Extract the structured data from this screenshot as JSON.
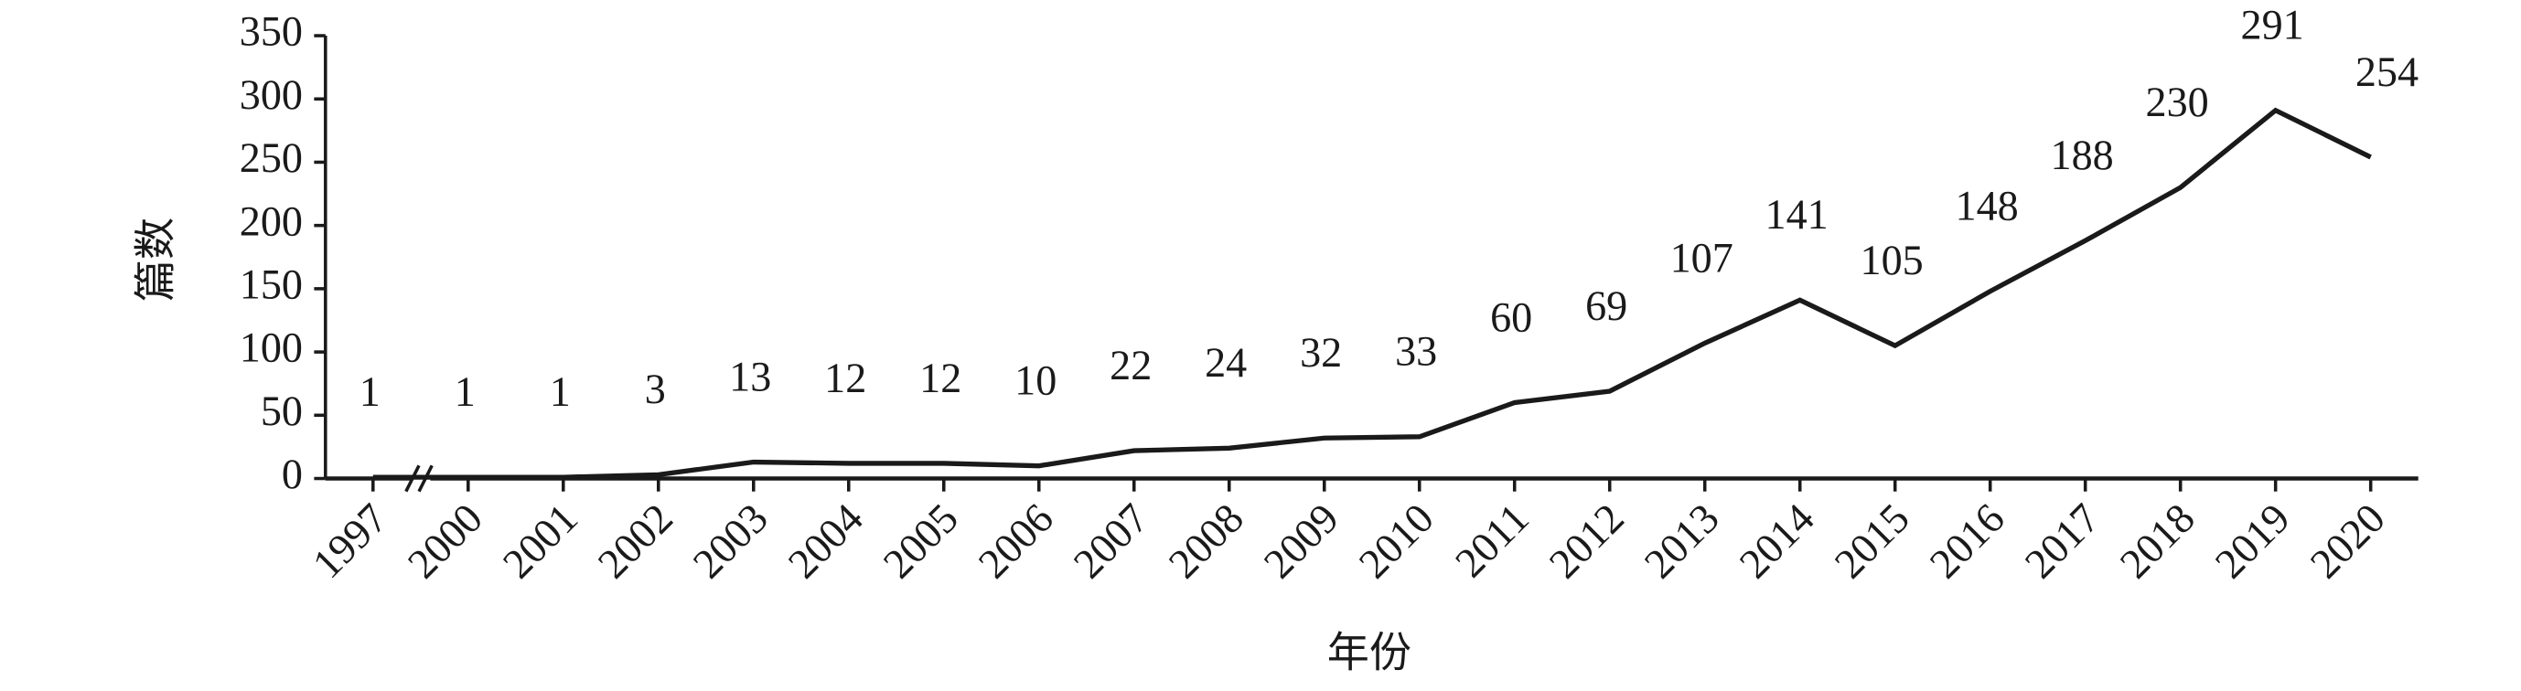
{
  "chart_data": {
    "type": "line",
    "x_label": "年份",
    "y_label": "篇数",
    "categories": [
      "1997",
      "2000",
      "2001",
      "2002",
      "2003",
      "2004",
      "2005",
      "2006",
      "2007",
      "2008",
      "2009",
      "2010",
      "2011",
      "2012",
      "2013",
      "2014",
      "2015",
      "2016",
      "2017",
      "2018",
      "2019",
      "2020"
    ],
    "values": [
      1,
      1,
      1,
      3,
      13,
      12,
      12,
      10,
      22,
      24,
      32,
      33,
      60,
      69,
      107,
      141,
      105,
      148,
      188,
      230,
      291,
      254
    ],
    "color": "#1a1a1a",
    "ylim": [
      0,
      350
    ],
    "yticks": [
      0,
      50,
      100,
      150,
      200,
      250,
      300,
      350
    ]
  }
}
